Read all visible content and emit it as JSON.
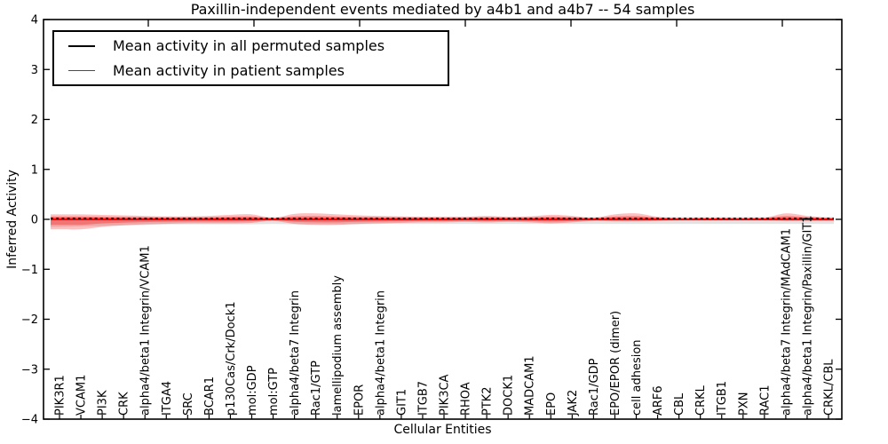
{
  "title": "Paxillin-independent events mediated by a4b1 and a4b7 -- 54 samples",
  "legend": {
    "items": [
      {
        "label": "Mean activity in all permuted samples",
        "color": "#000000"
      },
      {
        "label": "Mean activity in patient samples",
        "color": "#ff0000"
      }
    ]
  },
  "chart_data": {
    "type": "line",
    "title": "Paxillin-independent events mediated by a4b1 and a4b7 -- 54 samples",
    "xlabel": "Cellular Entities",
    "ylabel": "Inferred Activity",
    "ylim": [
      -4,
      4
    ],
    "yticks": [
      4,
      3,
      2,
      1,
      0,
      -1,
      -2,
      -3,
      -4
    ],
    "ytick_labels": [
      "4",
      "3",
      "2",
      "1",
      "0",
      "−1",
      "−2",
      "−3",
      "−4"
    ],
    "grid": false,
    "legend_position": "upper left",
    "categories": [
      "PIK3R1",
      "VCAM1",
      "PI3K",
      "CRK",
      "alpha4/beta1 Integrin/VCAM1",
      "ITGA4",
      "SRC",
      "BCAR1",
      "p130Cas/Crk/Dock1",
      "mol:GDP",
      "mol:GTP",
      "alpha4/beta7 Integrin",
      "Rac1/GTP",
      "lamellipodium assembly",
      "EPOR",
      "alpha4/beta1 Integrin",
      "GIT1",
      "ITGB7",
      "PIK3CA",
      "RHOA",
      "PTK2",
      "DOCK1",
      "MADCAM1",
      "EPO",
      "JAK2",
      "Rac1/GDP",
      "EPO/EPOR (dimer)",
      "cell adhesion",
      "ARF6",
      "CBL",
      "CRKL",
      "ITGB1",
      "PXN",
      "RAC1",
      "alpha4/beta7 Integrin/MAdCAM1",
      "alpha4/beta1 Integrin/Paxillin/GIT1",
      "CRKL/CBL"
    ],
    "series": [
      {
        "name": "Mean activity in all permuted samples",
        "color": "#000000",
        "style": "dashed",
        "values": [
          0,
          0,
          0,
          0,
          0,
          0,
          0,
          0,
          0,
          0,
          0,
          0,
          0,
          0,
          0,
          0,
          0,
          0,
          0,
          0,
          0,
          0,
          0,
          0,
          0,
          0,
          0,
          0,
          0,
          0,
          0,
          0,
          0,
          0,
          0,
          0,
          0
        ]
      },
      {
        "name": "Mean activity in patient samples",
        "color": "#ff0000",
        "style": "solid",
        "values": [
          0,
          0,
          0,
          0,
          0,
          0,
          0,
          0,
          0,
          0,
          0,
          0,
          0,
          0,
          0,
          0,
          0,
          0,
          0,
          0,
          0,
          0,
          0,
          0,
          0,
          0,
          0,
          0,
          0,
          0,
          0,
          0,
          0,
          0,
          0,
          0,
          0
        ]
      }
    ],
    "bands": [
      {
        "name": "permuted-std-band",
        "color": "#999999",
        "opacity": 0.28,
        "upper": [
          0.05,
          0.05,
          0.05,
          0.05,
          0.05,
          0.05,
          0.05,
          0.05,
          0.05,
          0.05,
          0.05,
          0.05,
          0.05,
          0.05,
          0.05,
          0.05,
          0.05,
          0.05,
          0.05,
          0.05,
          0.05,
          0.05,
          0.05,
          0.05,
          0.05,
          0.05,
          0.05,
          0.05,
          0.05,
          0.05,
          0.05,
          0.05,
          0.05,
          0.05,
          0.05,
          0.05,
          0.05
        ],
        "lower": [
          -0.15,
          -0.14,
          -0.13,
          -0.12,
          -0.11,
          -0.1,
          -0.1,
          -0.1,
          -0.1,
          -0.1,
          -0.09,
          -0.1,
          -0.1,
          -0.1,
          -0.1,
          -0.09,
          -0.09,
          -0.09,
          -0.09,
          -0.09,
          -0.09,
          -0.09,
          -0.09,
          -0.09,
          -0.09,
          -0.09,
          -0.09,
          -0.09,
          -0.09,
          -0.09,
          -0.09,
          -0.09,
          -0.09,
          -0.09,
          -0.09,
          -0.09,
          -0.09
        ]
      },
      {
        "name": "patient-std-band",
        "color": "#ff0000",
        "opacity": 0.25,
        "upper": [
          0.1,
          0.1,
          0.09,
          0.08,
          0.07,
          0.06,
          0.06,
          0.07,
          0.09,
          0.1,
          0.03,
          0.11,
          0.12,
          0.1,
          0.08,
          0.07,
          0.06,
          0.05,
          0.05,
          0.05,
          0.07,
          0.05,
          0.06,
          0.09,
          0.07,
          0.03,
          0.1,
          0.12,
          0.05,
          0.02,
          0.02,
          0.02,
          0.02,
          0.03,
          0.12,
          0.07,
          0.03
        ],
        "lower": [
          -0.2,
          -0.2,
          -0.15,
          -0.12,
          -0.1,
          -0.09,
          -0.08,
          -0.08,
          -0.08,
          -0.07,
          -0.03,
          -0.09,
          -0.11,
          -0.11,
          -0.09,
          -0.08,
          -0.07,
          -0.06,
          -0.06,
          -0.05,
          -0.06,
          -0.05,
          -0.06,
          -0.08,
          -0.06,
          -0.03,
          -0.04,
          -0.04,
          -0.03,
          -0.02,
          -0.02,
          -0.02,
          -0.02,
          -0.02,
          -0.03,
          -0.03,
          -0.03
        ]
      }
    ]
  }
}
